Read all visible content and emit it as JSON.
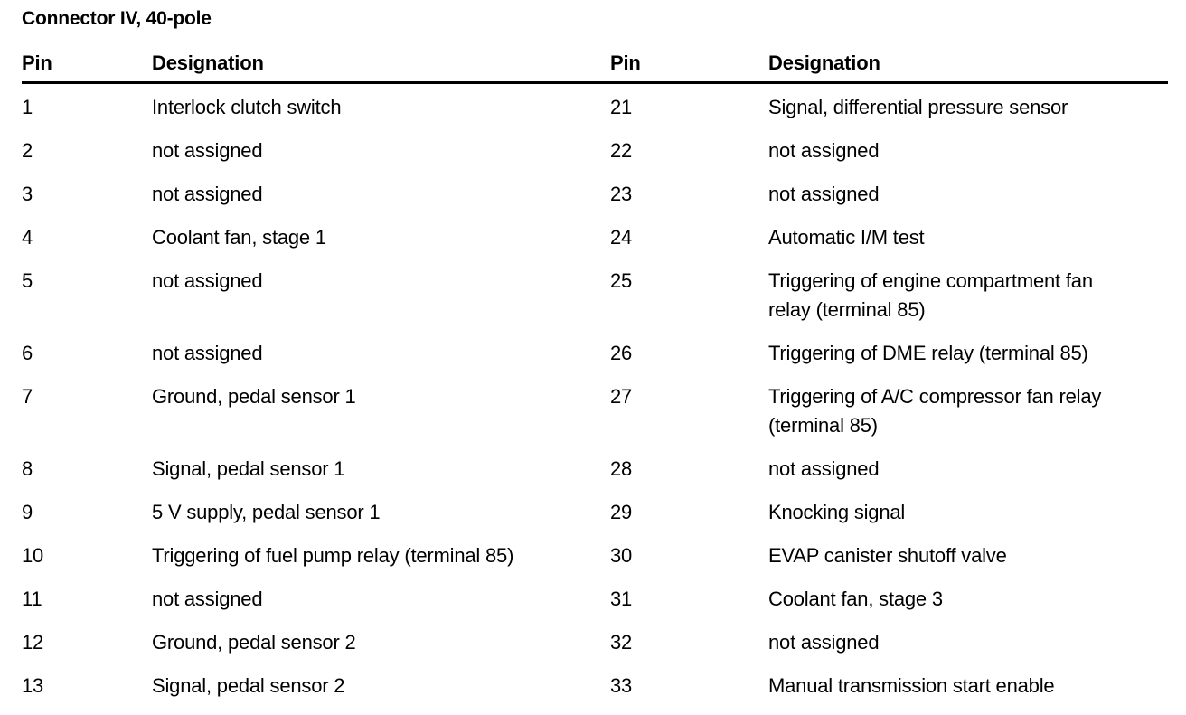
{
  "page": {
    "title": "Connector IV, 40-pole"
  },
  "colors": {
    "background": "#ffffff",
    "text": "#000000",
    "rule": "#000000"
  },
  "table": {
    "header": {
      "pin_left": "Pin",
      "designation_left": "Designation",
      "pin_right": "Pin",
      "designation_right": "Designation"
    },
    "rows": [
      {
        "pin_left": "1",
        "designation_left": "Interlock clutch switch",
        "pin_right": "21",
        "designation_right": "Signal, differential pressure sensor"
      },
      {
        "pin_left": "2",
        "designation_left": "not assigned",
        "pin_right": "22",
        "designation_right": "not assigned"
      },
      {
        "pin_left": "3",
        "designation_left": "not assigned",
        "pin_right": "23",
        "designation_right": "not assigned"
      },
      {
        "pin_left": "4",
        "designation_left": "Coolant fan, stage 1",
        "pin_right": "24",
        "designation_right": "Automatic I/M test"
      },
      {
        "pin_left": "5",
        "designation_left": "not assigned",
        "pin_right": "25",
        "designation_right": "Triggering of engine compartment fan\nrelay (terminal 85)"
      },
      {
        "pin_left": "6",
        "designation_left": "not assigned",
        "pin_right": "26",
        "designation_right": "Triggering of DME relay (terminal 85)"
      },
      {
        "pin_left": "7",
        "designation_left": "Ground, pedal sensor 1",
        "pin_right": "27",
        "designation_right": "Triggering of A/C compressor fan relay\n(terminal 85)"
      },
      {
        "pin_left": "8",
        "designation_left": "Signal, pedal sensor 1",
        "pin_right": "28",
        "designation_right": "not assigned"
      },
      {
        "pin_left": "9",
        "designation_left": "5 V supply, pedal sensor 1",
        "pin_right": "29",
        "designation_right": "Knocking signal"
      },
      {
        "pin_left": "10",
        "designation_left": "Triggering of fuel pump relay (terminal 85)",
        "pin_right": "30",
        "designation_right": "EVAP canister shutoff valve"
      },
      {
        "pin_left": "11",
        "designation_left": "not assigned",
        "pin_right": "31",
        "designation_right": "Coolant fan, stage 3"
      },
      {
        "pin_left": "12",
        "designation_left": "Ground, pedal sensor 2",
        "pin_right": "32",
        "designation_right": "not assigned"
      },
      {
        "pin_left": "13",
        "designation_left": "Signal, pedal sensor 2",
        "pin_right": "33",
        "designation_right": "Manual transmission start enable"
      }
    ]
  }
}
